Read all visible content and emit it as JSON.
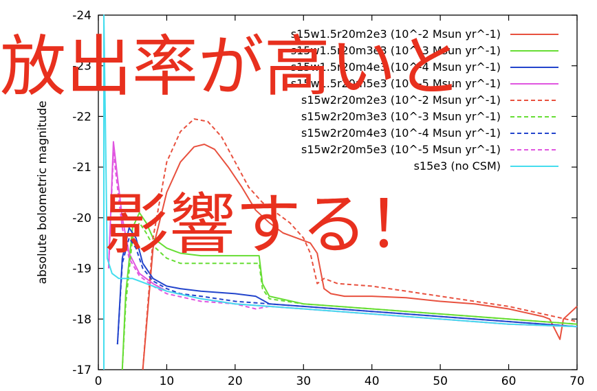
{
  "chart_data": {
    "type": "line",
    "xlabel": "",
    "ylabel": "absolute bolometric magnitude",
    "xlim": [
      0,
      70
    ],
    "ylim": [
      -17,
      -24
    ],
    "x_ticks": [
      "0",
      "10",
      "20",
      "30",
      "40",
      "50",
      "60",
      "70"
    ],
    "y_ticks": [
      "-24",
      "-23",
      "-22",
      "-21",
      "-20",
      "-19",
      "-18",
      "-17"
    ],
    "legend_position": "top-right",
    "overlay_text": [
      "放出率が高いと",
      "影響する！"
    ],
    "overlay_color": "#e8301e",
    "series": [
      {
        "name": "s15w1.5r20m2e3 (10^-2 Msun yr^-1)",
        "color": "#e8503e",
        "dash": "solid",
        "x": [
          6.5,
          8,
          10,
          12,
          14,
          15.5,
          17,
          19,
          21,
          23,
          25,
          27,
          29,
          31,
          32,
          33,
          34,
          36,
          40,
          45,
          50,
          55,
          60,
          65,
          66,
          67.5,
          68,
          70
        ],
        "y": [
          -17,
          -19.4,
          -20.5,
          -21.1,
          -21.4,
          -21.45,
          -21.35,
          -21.0,
          -20.6,
          -20.15,
          -19.9,
          -19.7,
          -19.6,
          -19.5,
          -19.3,
          -18.6,
          -18.5,
          -18.45,
          -18.45,
          -18.42,
          -18.35,
          -18.3,
          -18.2,
          -18.05,
          -18.0,
          -17.6,
          -18.0,
          -18.25
        ]
      },
      {
        "name": "s15w1.5r20m3e3 (10^-3 Msun yr^-1)",
        "color": "#66dd33",
        "dash": "solid",
        "x": [
          3.5,
          4,
          5,
          6,
          7,
          8,
          10,
          12,
          15,
          18,
          21,
          23.5,
          24,
          25,
          30,
          40,
          50,
          60,
          70
        ],
        "y": [
          -17,
          -18.5,
          -19.8,
          -20.1,
          -19.9,
          -19.6,
          -19.4,
          -19.3,
          -19.25,
          -19.25,
          -19.25,
          -19.25,
          -18.7,
          -18.45,
          -18.3,
          -18.2,
          -18.1,
          -18.0,
          -17.9
        ]
      },
      {
        "name": "s15w1.5r20m4e3 (10^-4 Msun yr^-1)",
        "color": "#2244cc",
        "dash": "solid",
        "x": [
          2.8,
          3.5,
          4.5,
          5.5,
          6.5,
          8,
          10,
          12,
          15,
          20,
          23,
          25,
          30,
          40,
          50,
          60,
          70
        ],
        "y": [
          -17.5,
          -19.2,
          -19.8,
          -19.6,
          -19.1,
          -18.8,
          -18.65,
          -18.6,
          -18.55,
          -18.5,
          -18.45,
          -18.3,
          -18.25,
          -18.15,
          -18.05,
          -17.95,
          -17.85
        ]
      },
      {
        "name": "s15w1.5r20m5e3 (10^-5 Msun yr^-1)",
        "color": "#e055e0",
        "dash": "solid",
        "x": [
          1.5,
          2.2,
          2.8,
          3.5,
          4.5,
          6,
          8,
          10,
          15,
          20,
          25,
          30,
          40,
          50,
          60,
          70
        ],
        "y": [
          -19.0,
          -21.5,
          -20.8,
          -20.0,
          -19.3,
          -18.9,
          -18.7,
          -18.55,
          -18.4,
          -18.3,
          -18.25,
          -18.2,
          -18.1,
          -18.0,
          -17.9,
          -17.85
        ]
      },
      {
        "name": "s15w2r20m2e3 (10^-2 Msun yr^-1)",
        "color": "#e8503e",
        "dash": "dashed",
        "x": [
          6.5,
          8,
          10,
          12,
          14,
          16,
          18,
          20,
          22,
          24,
          26,
          28,
          30,
          31,
          32,
          33,
          35,
          40,
          45,
          50,
          55,
          60,
          65,
          70
        ],
        "y": [
          -17,
          -19.6,
          -21.1,
          -21.7,
          -21.95,
          -21.9,
          -21.6,
          -21.1,
          -20.6,
          -20.3,
          -20.1,
          -19.9,
          -19.6,
          -19.3,
          -18.7,
          -18.8,
          -18.7,
          -18.65,
          -18.55,
          -18.45,
          -18.35,
          -18.25,
          -18.1,
          -17.95
        ]
      },
      {
        "name": "s15w2r20m3e3 (10^-3 Msun yr^-1)",
        "color": "#66dd33",
        "dash": "dashed",
        "x": [
          3.5,
          4,
          5,
          6,
          7,
          8,
          10,
          12,
          15,
          18,
          21,
          23.5,
          24,
          25,
          30,
          40,
          50,
          60,
          70
        ],
        "y": [
          -17,
          -18.3,
          -19.6,
          -19.9,
          -19.7,
          -19.45,
          -19.2,
          -19.1,
          -19.1,
          -19.1,
          -19.1,
          -19.1,
          -18.6,
          -18.4,
          -18.3,
          -18.2,
          -18.1,
          -18.0,
          -17.9
        ]
      },
      {
        "name": "s15w2r20m4e3 (10^-4 Msun yr^-1)",
        "color": "#2244cc",
        "dash": "dashed",
        "x": [
          2.8,
          3.5,
          4.5,
          5.5,
          6.5,
          8,
          10,
          12,
          15,
          20,
          25,
          30,
          40,
          50,
          60,
          70
        ],
        "y": [
          -17.5,
          -19.1,
          -19.6,
          -19.4,
          -19.0,
          -18.75,
          -18.6,
          -18.5,
          -18.45,
          -18.35,
          -18.3,
          -18.25,
          -18.15,
          -18.05,
          -17.95,
          -17.85
        ]
      },
      {
        "name": "s15w2r20m5e3 (10^-5 Msun yr^-1)",
        "color": "#e055e0",
        "dash": "dashed",
        "x": [
          1.5,
          2.2,
          2.8,
          3.5,
          4.5,
          6,
          8,
          10,
          15,
          20,
          23,
          25,
          30,
          40,
          50,
          60,
          70
        ],
        "y": [
          -19.0,
          -21.3,
          -20.6,
          -19.8,
          -19.2,
          -18.85,
          -18.65,
          -18.5,
          -18.35,
          -18.3,
          -18.2,
          -18.25,
          -18.2,
          -18.1,
          -18.0,
          -17.9,
          -17.85
        ]
      },
      {
        "name": "s15e3 (no CSM)",
        "color": "#44ddee",
        "dash": "solid",
        "x": [
          0.8,
          0.8,
          1.3,
          2,
          3,
          4,
          5,
          6,
          8,
          10,
          15,
          20,
          25,
          30,
          40,
          50,
          60,
          70
        ],
        "y": [
          -17,
          -24,
          -19.2,
          -18.9,
          -18.8,
          -18.8,
          -18.8,
          -18.75,
          -18.65,
          -18.55,
          -18.4,
          -18.3,
          -18.25,
          -18.2,
          -18.1,
          -18.0,
          -17.9,
          -17.85
        ]
      }
    ]
  }
}
